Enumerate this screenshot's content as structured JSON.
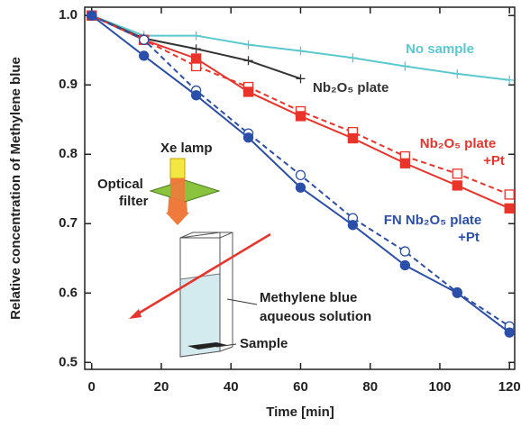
{
  "chart_data": {
    "type": "line",
    "x_label": "Time [min]",
    "y_label": "Relative concentration of Methylene blue",
    "xlim": [
      -2,
      121.5
    ],
    "ylim": [
      0.49,
      1.012
    ],
    "xticks": [
      0,
      20,
      40,
      60,
      80,
      100,
      120
    ],
    "yticks": [
      {
        "value": 0.5,
        "label": "0.5"
      },
      0.6,
      0.7,
      0.8,
      0.9,
      {
        "value": 1,
        "label": "1.0"
      }
    ],
    "series": [
      {
        "name": "No sample",
        "color": "#5bc8d0",
        "marker": "plus",
        "filled": true,
        "dashed": false,
        "x": [
          0,
          15,
          30,
          45,
          60,
          75,
          90,
          105,
          120
        ],
        "values": [
          1.0,
          0.971,
          0.971,
          0.958,
          0.949,
          0.939,
          0.927,
          0.916,
          0.907
        ]
      },
      {
        "name": "Nb₂O₅ plate",
        "color": "#333333",
        "marker": "plus",
        "filled": true,
        "dashed": false,
        "x": [
          0,
          15,
          30,
          45,
          60
        ],
        "values": [
          1.0,
          0.967,
          0.952,
          0.935,
          0.909
        ]
      },
      {
        "color": "#e8342b",
        "marker": "square",
        "filled": false,
        "dashed": true,
        "x": [
          0,
          15,
          30,
          45,
          60,
          75,
          90,
          105,
          120
        ],
        "values": [
          1.0,
          0.965,
          0.927,
          0.897,
          0.862,
          0.832,
          0.797,
          0.772,
          0.742
        ]
      },
      {
        "name": "Nb₂O₅ plate +Pt",
        "color": "#e8342b",
        "marker": "square",
        "filled": true,
        "dashed": false,
        "x": [
          0,
          15,
          30,
          45,
          60,
          75,
          90,
          105,
          120
        ],
        "values": [
          1.0,
          0.965,
          0.938,
          0.89,
          0.855,
          0.823,
          0.787,
          0.755,
          0.722
        ]
      },
      {
        "color": "#2b4fa8",
        "marker": "circle",
        "filled": false,
        "dashed": true,
        "x": [
          0,
          15,
          30,
          45,
          60,
          75,
          90,
          105,
          120
        ],
        "values": [
          1.0,
          0.965,
          0.892,
          0.83,
          0.77,
          0.708,
          0.66,
          0.601,
          0.552
        ]
      },
      {
        "name": "FN Nb₂O₅ plate +Pt",
        "color": "#2b4fa8",
        "marker": "circle",
        "filled": true,
        "dashed": false,
        "x": [
          0,
          15,
          30,
          45,
          60,
          75,
          90,
          105,
          120
        ],
        "values": [
          1.0,
          0.942,
          0.885,
          0.824,
          0.752,
          0.698,
          0.64,
          0.6,
          0.543
        ]
      }
    ],
    "inset": {
      "lamp": "Xe lamp",
      "filter_lines": [
        "Optical",
        "filter"
      ],
      "solution_lines": [
        "Methylene blue",
        "aqueous solution"
      ],
      "sample": "Sample"
    }
  }
}
